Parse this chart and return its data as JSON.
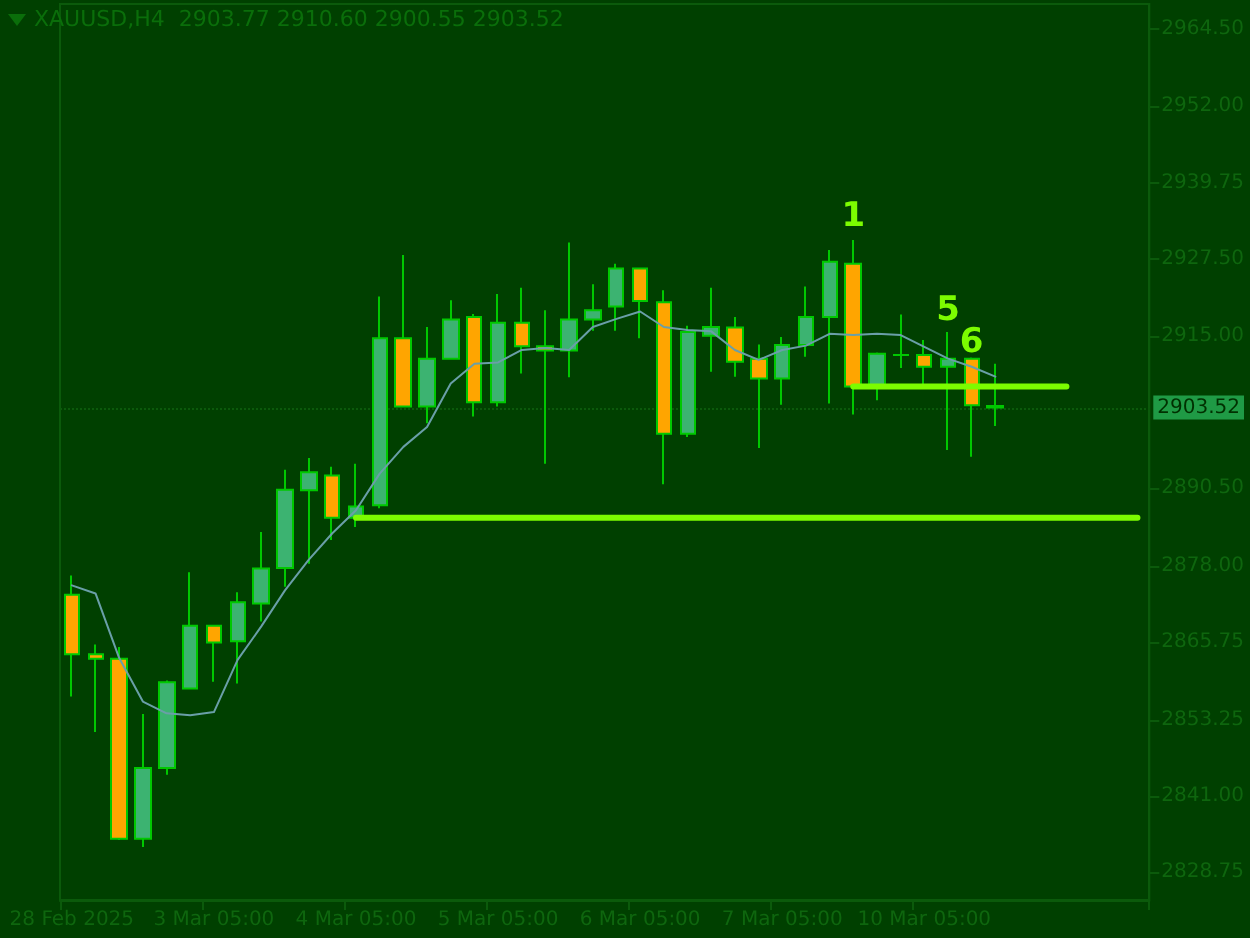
{
  "chart_data": {
    "type": "candlestick",
    "title": "XAUUSD,H4  2903.77 2910.60 2900.55 2903.52",
    "categories": [
      "28 Feb 2025",
      null,
      null,
      null,
      null,
      null,
      "3 Mar 05:00",
      null,
      null,
      null,
      null,
      null,
      "4 Mar 05:00",
      null,
      null,
      null,
      null,
      null,
      "5 Mar 05:00",
      null,
      null,
      null,
      null,
      null,
      "6 Mar 05:00",
      null,
      null,
      null,
      null,
      null,
      "7 Mar 05:00",
      null,
      null,
      null,
      null,
      null,
      "10 Mar 05:00",
      null,
      null,
      null,
      null,
      null,
      null,
      null,
      null,
      null
    ],
    "ohlc": [
      [
        2873.4,
        2876.5,
        2857.0,
        2863.8
      ],
      [
        2863.8,
        2865.4,
        2851.3,
        2863.1
      ],
      [
        2863.1,
        2865.0,
        2833.9,
        2834.1
      ],
      [
        2834.1,
        2854.2,
        2832.8,
        2845.5
      ],
      [
        2845.5,
        2859.6,
        2844.4,
        2859.3
      ],
      [
        2858.3,
        2877.0,
        2858.3,
        2868.4
      ],
      [
        2868.4,
        2868.4,
        2859.4,
        2865.7
      ],
      [
        2865.9,
        2873.8,
        2859.1,
        2872.2
      ],
      [
        2872.0,
        2883.5,
        2869.1,
        2877.6
      ],
      [
        2877.7,
        2893.5,
        2874.7,
        2890.3
      ],
      [
        2890.2,
        2895.4,
        2878.4,
        2893.1
      ],
      [
        2892.6,
        2894.0,
        2882.2,
        2885.8
      ],
      [
        2885.8,
        2894.5,
        2884.3,
        2887.6
      ],
      [
        2887.8,
        2921.4,
        2887.3,
        2914.7
      ],
      [
        2914.7,
        2928.1,
        2903.7,
        2903.7
      ],
      [
        2903.7,
        2916.5,
        2901.0,
        2911.4
      ],
      [
        2911.4,
        2920.8,
        2911.4,
        2917.7
      ],
      [
        2918.1,
        2918.6,
        2902.1,
        2904.4
      ],
      [
        2904.4,
        2921.8,
        2903.7,
        2917.2
      ],
      [
        2917.2,
        2922.8,
        2909.0,
        2913.4
      ],
      [
        2913.4,
        2919.2,
        2894.5,
        2912.7
      ],
      [
        2912.7,
        2930.1,
        2908.4,
        2917.7
      ],
      [
        2917.7,
        2923.4,
        2915.9,
        2919.2
      ],
      [
        2919.8,
        2926.7,
        2915.9,
        2925.9
      ],
      [
        2925.9,
        2926.0,
        2914.7,
        2920.7
      ],
      [
        2920.5,
        2922.4,
        2891.2,
        2899.3
      ],
      [
        2899.3,
        2916.7,
        2898.8,
        2915.7
      ],
      [
        2915.1,
        2922.8,
        2909.3,
        2916.5
      ],
      [
        2916.4,
        2918.1,
        2908.5,
        2910.9
      ],
      [
        2911.4,
        2913.7,
        2897.0,
        2908.2
      ],
      [
        2908.2,
        2914.9,
        2904.0,
        2913.6
      ],
      [
        2913.6,
        2923.0,
        2911.7,
        2918.1
      ],
      [
        2918.1,
        2928.9,
        2904.2,
        2927.0
      ],
      [
        2926.7,
        2930.5,
        2902.4,
        2906.9
      ],
      [
        2906.9,
        2912.4,
        2904.7,
        2912.2
      ],
      [
        2912.0,
        2918.5,
        2909.9,
        2912.0
      ],
      [
        2912.0,
        2914.4,
        2907.2,
        2910.1
      ],
      [
        2910.1,
        2915.7,
        2896.7,
        2911.4
      ],
      [
        2911.4,
        2911.6,
        2895.6,
        2903.9
      ],
      [
        2903.77,
        2910.6,
        2900.55,
        2903.52
      ],
      null,
      null,
      null,
      null,
      null,
      null
    ],
    "colors": [
      "#ffa500",
      "#ffa500",
      "#ffa500",
      "#3cb371",
      "#3cb371",
      "#3cb371",
      "#ffa500",
      "#3cb371",
      "#3cb371",
      "#3cb371",
      "#3cb371",
      "#ffa500",
      "#3cb371",
      "#3cb371",
      "#ffa500",
      "#3cb371",
      "#3cb371",
      "#ffa500",
      "#3cb371",
      "#ffa500",
      "#ffa500",
      "#3cb371",
      "#3cb371",
      "#3cb371",
      "#ffa500",
      "#ffa500",
      "#3cb371",
      "#3cb371",
      "#ffa500",
      "#ffa500",
      "#3cb371",
      "#3cb371",
      "#3cb371",
      "#ffa500",
      "#3cb371",
      "#00c800",
      "#ffa500",
      "#3cb371",
      "#ffa500",
      "#ffa500",
      null,
      null,
      null,
      null,
      null,
      null
    ],
    "series": [
      {
        "type": "line",
        "color": "#6a9fa8",
        "values": [
          2874.9,
          2873.6,
          2863.2,
          2856.2,
          2854.3,
          2854.0,
          2854.5,
          2862.9,
          2868.3,
          2874.1,
          2879.0,
          2883.3,
          2887.0,
          2892.9,
          2897.2,
          2900.4,
          2907.4,
          2910.6,
          2910.8,
          2912.8,
          2913.1,
          2912.8,
          2916.5,
          2917.8,
          2919.0,
          2916.5,
          2916.0,
          2915.8,
          2912.8,
          2911.2,
          2912.8,
          2913.5,
          2915.4,
          2915.2,
          2915.4,
          2915.2,
          2913.3,
          2911.4,
          2910.1,
          2908.5,
          null,
          null,
          null,
          null,
          null,
          null
        ]
      },
      {
        "type": "line",
        "color": "#7cfc00",
        "values": [
          null,
          null,
          null,
          null,
          null,
          null,
          null,
          null,
          null,
          null,
          null,
          null,
          2885.8,
          2885.8,
          2885.8,
          2885.8,
          2885.8,
          2885.8,
          2885.8,
          2885.8,
          2885.8,
          2885.8,
          2885.8,
          2885.8,
          2885.8,
          2885.8,
          2885.8,
          2885.8,
          2885.8,
          2885.8,
          2885.8,
          2885.8,
          2885.8,
          2885.8,
          2885.8,
          2885.8,
          2885.8,
          2885.8,
          2885.8,
          2885.8,
          2885.8,
          2885.8,
          2885.8,
          2885.8,
          2885.8,
          2885.8
        ]
      },
      {
        "type": "line",
        "color": "#7cfc00",
        "values": [
          null,
          null,
          null,
          null,
          null,
          null,
          null,
          null,
          null,
          null,
          null,
          null,
          null,
          null,
          null,
          null,
          null,
          null,
          null,
          null,
          null,
          null,
          null,
          null,
          null,
          null,
          null,
          null,
          null,
          null,
          null,
          null,
          null,
          2906.9,
          2906.9,
          2906.9,
          2906.9,
          2906.9,
          2906.9,
          2906.9,
          2906.9,
          2906.9,
          2906.9,
          null,
          null,
          null
        ]
      }
    ],
    "ylim": [
      2824.25,
      2968.5
    ],
    "yticks": [
      {
        "value": 2964.5,
        "label": "2964.50"
      },
      {
        "value": 2952,
        "label": "2952.00"
      },
      {
        "value": 2939.75,
        "label": "2939.75"
      },
      {
        "value": 2927.5,
        "label": "2927.50"
      },
      {
        "value": 2915,
        "label": "2915.00"
      },
      {
        "value": 2890.5,
        "label": "2890.50"
      },
      {
        "value": 2878,
        "label": "2878.00"
      },
      {
        "value": 2865.75,
        "label": "2865.75"
      },
      {
        "value": 2853.25,
        "label": "2853.25"
      },
      {
        "value": 2841,
        "label": "2841.00"
      },
      {
        "value": 2828.75,
        "label": "2828.75"
      }
    ],
    "ref_lines": [
      {
        "axis": "y",
        "value": 2903.52,
        "label": "2903.52"
      }
    ],
    "annotations": [
      "1",
      "5",
      "6"
    ],
    "grid": false,
    "marker": "none",
    "line_style": "solid"
  }
}
